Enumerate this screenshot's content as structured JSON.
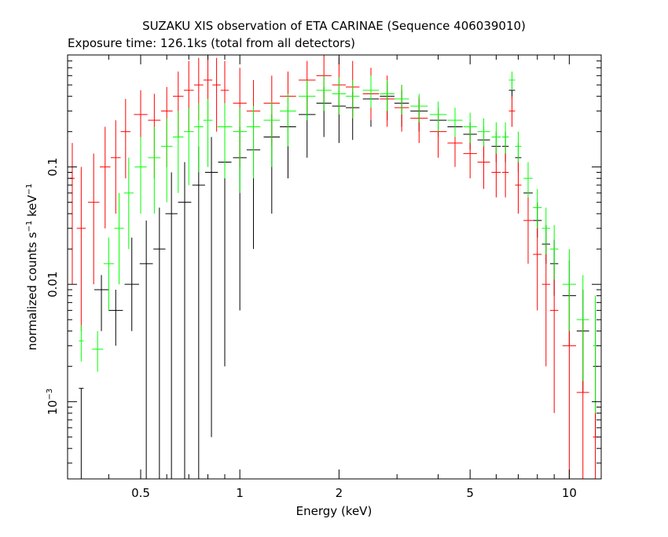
{
  "chart_data": {
    "type": "scatter",
    "title": "SUZAKU XIS observation of ETA CARINAE (Sequence 406039010)",
    "subtitle": "Exposure time: 126.1ks (total from all detectors)",
    "xlabel": "Energy (keV)",
    "ylabel": "normalized counts s",
    "ylabel_sup1": "−1",
    "ylabel_mid": " keV",
    "ylabel_sup2": "−1",
    "x_scale": "log",
    "y_scale": "log",
    "xlim": [
      0.3,
      12.5
    ],
    "ylim": [
      0.00022,
      0.9
    ],
    "x_ticks": [
      {
        "value": 0.5,
        "label": "0.5"
      },
      {
        "value": 1,
        "label": "1"
      },
      {
        "value": 2,
        "label": "2"
      },
      {
        "value": 5,
        "label": "5"
      },
      {
        "value": 10,
        "label": "10"
      }
    ],
    "y_ticks": [
      {
        "value": 0.1,
        "label": "0.1"
      },
      {
        "value": 0.01,
        "label": "0.01"
      },
      {
        "value": 0.001,
        "label": "10",
        "sup": "−3"
      }
    ],
    "grid": false,
    "legend": "none",
    "series": [
      {
        "color": "#000000",
        "x": [
          0.33,
          0.38,
          0.42,
          0.47,
          0.52,
          0.57,
          0.62,
          0.68,
          0.75,
          0.82,
          0.9,
          1.0,
          1.1,
          1.25,
          1.4,
          1.6,
          1.8,
          2.0,
          2.2,
          2.5,
          2.8,
          3.1,
          3.5,
          4.0,
          4.5,
          5.0,
          5.5,
          6.0,
          6.4,
          6.7,
          7.0,
          7.5,
          8.0,
          8.5,
          9.0,
          10.0,
          11.0,
          12.0
        ],
        "y": [
          0.0013,
          0.009,
          0.006,
          0.01,
          0.015,
          0.02,
          0.04,
          0.05,
          0.07,
          0.09,
          0.11,
          0.12,
          0.14,
          0.18,
          0.22,
          0.28,
          0.35,
          0.33,
          0.32,
          0.38,
          0.4,
          0.35,
          0.3,
          0.25,
          0.22,
          0.19,
          0.17,
          0.15,
          0.15,
          0.45,
          0.12,
          0.06,
          0.035,
          0.022,
          0.015,
          0.008,
          0.004,
          0.002
        ],
        "err_lo": [
          0.00022,
          0.004,
          0.003,
          0.004,
          0.00022,
          0.00022,
          0.00022,
          0.00022,
          0.00022,
          0.0005,
          0.002,
          0.006,
          0.02,
          0.04,
          0.08,
          0.12,
          0.18,
          0.16,
          0.17,
          0.22,
          0.25,
          0.22,
          0.2,
          0.18,
          0.16,
          0.14,
          0.12,
          0.11,
          0.11,
          0.38,
          0.09,
          0.045,
          0.025,
          0.015,
          0.008,
          0.003,
          0.0012,
          0.0005
        ],
        "err_hi": [
          0.0013,
          0.012,
          0.009,
          0.025,
          0.035,
          0.045,
          0.09,
          0.11,
          0.15,
          0.18,
          0.2,
          0.22,
          0.25,
          0.28,
          0.32,
          0.4,
          0.48,
          0.45,
          0.44,
          0.5,
          0.52,
          0.45,
          0.38,
          0.32,
          0.28,
          0.24,
          0.22,
          0.2,
          0.2,
          0.55,
          0.16,
          0.08,
          0.05,
          0.032,
          0.024,
          0.016,
          0.009,
          0.006
        ]
      },
      {
        "color": "#ff0000",
        "x": [
          0.31,
          0.33,
          0.36,
          0.39,
          0.42,
          0.45,
          0.5,
          0.55,
          0.6,
          0.65,
          0.7,
          0.75,
          0.8,
          0.85,
          0.9,
          1.0,
          1.1,
          1.25,
          1.4,
          1.6,
          1.8,
          2.0,
          2.2,
          2.5,
          2.8,
          3.1,
          3.5,
          4.0,
          4.5,
          5.0,
          5.5,
          6.0,
          6.4,
          6.7,
          7.0,
          7.5,
          8.0,
          8.5,
          9.0,
          10.0,
          11.0,
          12.0
        ],
        "y": [
          0.08,
          0.03,
          0.05,
          0.1,
          0.12,
          0.2,
          0.28,
          0.25,
          0.3,
          0.4,
          0.45,
          0.5,
          0.55,
          0.5,
          0.45,
          0.35,
          0.3,
          0.35,
          0.4,
          0.55,
          0.6,
          0.5,
          0.48,
          0.42,
          0.38,
          0.32,
          0.26,
          0.2,
          0.16,
          0.13,
          0.11,
          0.09,
          0.09,
          0.3,
          0.07,
          0.035,
          0.018,
          0.01,
          0.006,
          0.003,
          0.0012,
          0.0005
        ],
        "err_lo": [
          0.01,
          0.004,
          0.01,
          0.03,
          0.04,
          0.08,
          0.12,
          0.08,
          0.1,
          0.18,
          0.2,
          0.25,
          0.25,
          0.2,
          0.15,
          0.1,
          0.1,
          0.15,
          0.2,
          0.3,
          0.35,
          0.28,
          0.26,
          0.25,
          0.22,
          0.2,
          0.16,
          0.12,
          0.1,
          0.08,
          0.065,
          0.055,
          0.055,
          0.22,
          0.04,
          0.015,
          0.006,
          0.002,
          0.0008,
          0.00022,
          0.00022,
          0.00022
        ],
        "err_hi": [
          0.16,
          0.1,
          0.13,
          0.22,
          0.25,
          0.38,
          0.45,
          0.42,
          0.48,
          0.65,
          0.8,
          0.85,
          0.9,
          0.85,
          0.8,
          0.7,
          0.55,
          0.6,
          0.65,
          0.8,
          0.9,
          0.85,
          0.8,
          0.7,
          0.6,
          0.5,
          0.4,
          0.32,
          0.26,
          0.22,
          0.18,
          0.15,
          0.15,
          0.4,
          0.11,
          0.06,
          0.035,
          0.022,
          0.014,
          0.009,
          0.005,
          0.003
        ]
      },
      {
        "color": "#00ff00",
        "x": [
          0.33,
          0.37,
          0.4,
          0.43,
          0.46,
          0.5,
          0.55,
          0.6,
          0.65,
          0.7,
          0.75,
          0.8,
          0.9,
          1.0,
          1.1,
          1.25,
          1.4,
          1.6,
          1.8,
          2.0,
          2.2,
          2.5,
          2.8,
          3.1,
          3.5,
          4.0,
          4.5,
          5.0,
          5.5,
          6.0,
          6.4,
          6.7,
          7.0,
          7.5,
          8.0,
          8.5,
          9.0,
          10.0,
          11.0,
          12.0
        ],
        "y": [
          0.0033,
          0.0028,
          0.015,
          0.03,
          0.06,
          0.1,
          0.12,
          0.15,
          0.18,
          0.2,
          0.22,
          0.25,
          0.22,
          0.2,
          0.22,
          0.25,
          0.3,
          0.4,
          0.45,
          0.42,
          0.4,
          0.45,
          0.42,
          0.38,
          0.33,
          0.28,
          0.25,
          0.22,
          0.2,
          0.18,
          0.18,
          0.55,
          0.15,
          0.08,
          0.045,
          0.03,
          0.02,
          0.01,
          0.005,
          0.003
        ],
        "err_lo": [
          0.0022,
          0.0018,
          0.006,
          0.01,
          0.02,
          0.04,
          0.04,
          0.05,
          0.06,
          0.07,
          0.09,
          0.1,
          0.08,
          0.06,
          0.08,
          0.1,
          0.15,
          0.25,
          0.3,
          0.28,
          0.26,
          0.32,
          0.3,
          0.28,
          0.24,
          0.2,
          0.18,
          0.16,
          0.15,
          0.13,
          0.13,
          0.45,
          0.11,
          0.055,
          0.03,
          0.018,
          0.011,
          0.004,
          0.0015,
          0.0008
        ],
        "err_hi": [
          0.0045,
          0.004,
          0.025,
          0.06,
          0.12,
          0.18,
          0.22,
          0.26,
          0.3,
          0.32,
          0.35,
          0.38,
          0.35,
          0.32,
          0.33,
          0.36,
          0.42,
          0.55,
          0.6,
          0.58,
          0.55,
          0.6,
          0.55,
          0.5,
          0.42,
          0.36,
          0.32,
          0.29,
          0.26,
          0.24,
          0.24,
          0.65,
          0.2,
          0.11,
          0.065,
          0.045,
          0.032,
          0.02,
          0.012,
          0.008
        ]
      }
    ]
  }
}
